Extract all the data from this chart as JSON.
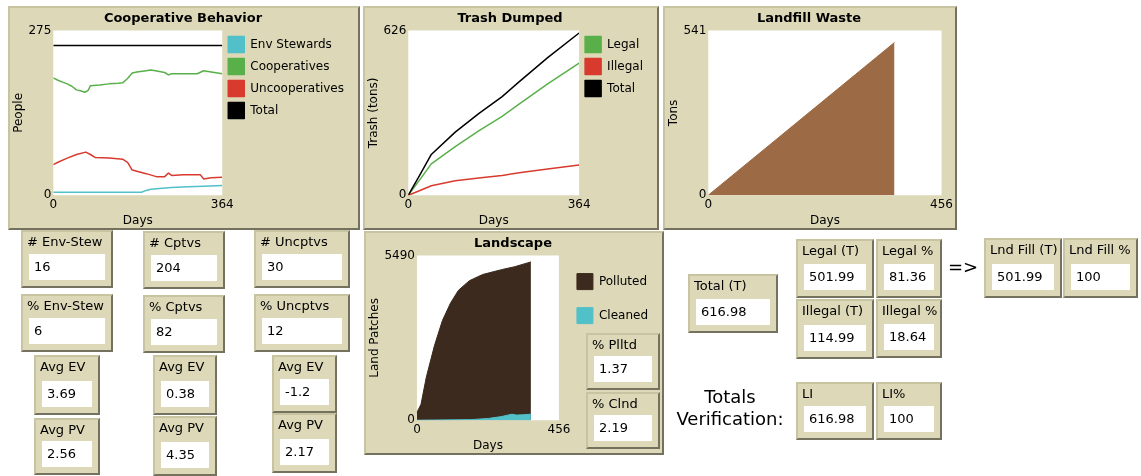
{
  "chart_data": [
    {
      "type": "line",
      "title": "Cooperative Behavior",
      "xlabel": "Days",
      "ylabel": "People",
      "xlim": [
        0,
        364
      ],
      "ylim": [
        0,
        275
      ],
      "xticks": [
        0,
        364
      ],
      "yticks": [
        0,
        275
      ],
      "legend": "right",
      "series": [
        {
          "name": "Env Stewards",
          "color": "#52c0c8",
          "x": [
            0,
            190,
            200,
            210,
            254,
            290,
            324,
            364
          ],
          "values": [
            5,
            5,
            8,
            10,
            13,
            14,
            15,
            16
          ]
        },
        {
          "name": "Cooperatives",
          "color": "#59b04a",
          "x": [
            0,
            10,
            20,
            30,
            40,
            50,
            60,
            68,
            75,
            80,
            100,
            120,
            140,
            150,
            160,
            170,
            180,
            200,
            210,
            220,
            240,
            248,
            255,
            280,
            310,
            324,
            340,
            364
          ],
          "values": [
            196,
            192,
            189,
            186,
            182,
            176,
            174,
            172,
            175,
            183,
            184,
            186,
            187,
            188,
            195,
            204,
            206,
            208,
            209,
            208,
            205,
            201,
            203,
            203,
            203,
            208,
            206,
            203
          ]
        },
        {
          "name": "Uncooperatives",
          "color": "#d83a2e",
          "x": [
            0,
            10,
            30,
            50,
            70,
            80,
            90,
            120,
            150,
            160,
            170,
            190,
            200,
            222,
            240,
            248,
            255,
            280,
            317,
            324,
            340,
            364
          ],
          "values": [
            51,
            55,
            62,
            68,
            72,
            68,
            63,
            62,
            60,
            55,
            42,
            38,
            36,
            31,
            31,
            37,
            33,
            34,
            34,
            27,
            29,
            30
          ]
        },
        {
          "name": "Total",
          "color": "#000000",
          "x": [
            0,
            364
          ],
          "values": [
            250,
            250
          ]
        }
      ]
    },
    {
      "type": "line",
      "title": "Trash Dumped",
      "xlabel": "Days",
      "ylabel": "Trash (tons)",
      "xlim": [
        0,
        364
      ],
      "ylim": [
        0,
        626
      ],
      "xticks": [
        0,
        364
      ],
      "yticks": [
        0,
        626
      ],
      "legend": "right",
      "series": [
        {
          "name": "Legal",
          "color": "#59b04a",
          "x": [
            0,
            25,
            49,
            100,
            150,
            200,
            236,
            297,
            364
          ],
          "values": [
            0,
            60,
            119,
            185,
            245,
            300,
            346,
            423,
            502
          ]
        },
        {
          "name": "Illegal",
          "color": "#d83a2e",
          "x": [
            0,
            25,
            49,
            100,
            150,
            200,
            236,
            297,
            364
          ],
          "values": [
            0,
            18,
            36,
            55,
            65,
            75,
            85,
            100,
            115
          ]
        },
        {
          "name": "Total",
          "color": "#000000",
          "x": [
            0,
            25,
            49,
            100,
            150,
            200,
            236,
            297,
            364
          ],
          "values": [
            0,
            78,
            155,
            240,
            310,
            375,
            431,
            523,
            617
          ]
        }
      ]
    },
    {
      "type": "area",
      "title": "Landfill Waste",
      "xlabel": "Days",
      "ylabel": "Tons",
      "xlim": [
        0,
        456
      ],
      "ylim": [
        0,
        541
      ],
      "xticks": [
        0,
        456
      ],
      "yticks": [
        0,
        541
      ],
      "series": [
        {
          "color": "#9c6a44",
          "x": [
            0,
            182,
            364
          ],
          "values": [
            0,
            251,
            502
          ]
        }
      ]
    },
    {
      "type": "area",
      "title": "Landscape",
      "xlabel": "Days",
      "ylabel": "Land Patches",
      "xlim": [
        0,
        456
      ],
      "ylim": [
        0,
        5490
      ],
      "xticks": [
        0,
        456
      ],
      "yticks": [
        0,
        5490
      ],
      "legend": "right",
      "series": [
        {
          "name": "Polluted",
          "color": "#3b2a1d",
          "x": [
            0,
            13,
            30,
            56,
            82,
            108,
            133,
            168,
            211,
            271,
            314,
            366
          ],
          "values": [
            260,
            530,
            1430,
            2480,
            3330,
            3910,
            4330,
            4650,
            4860,
            5020,
            5120,
            5280
          ]
        },
        {
          "name": "Cleaned",
          "color": "#52c0c8",
          "x": [
            0,
            176,
            230,
            271,
            305,
            320,
            340,
            366
          ],
          "values": [
            0,
            20,
            60,
            120,
            200,
            170,
            180,
            200
          ]
        }
      ]
    },
    {
      "type": "other",
      "annotations": [
        "# Env-Stew",
        "16",
        "# Cptvs",
        "204",
        "# Uncptvs",
        "30",
        "% Env-Stew",
        "6",
        "% Cptvs",
        "82",
        "% Uncptvs",
        "12",
        "Avg EV",
        "3.69",
        "Avg EV",
        "0.38",
        "Avg EV",
        "-1.2",
        "Avg PV",
        "2.56",
        "Avg PV",
        "4.35",
        "Avg PV",
        "2.17",
        "% Plltd",
        "1.37",
        "% Clnd",
        "2.19",
        "Total (T)",
        "616.98",
        "Legal (T)",
        "501.99",
        "Legal %",
        "81.36",
        "Illegal (T)",
        "114.99",
        "Illegal %",
        "18.64",
        "Lnd Fill (T)",
        "501.99",
        "Lnd Fill %",
        "100",
        "LI",
        "616.98",
        "LI%",
        "100",
        "=>",
        "Totals Verification:"
      ]
    }
  ]
}
